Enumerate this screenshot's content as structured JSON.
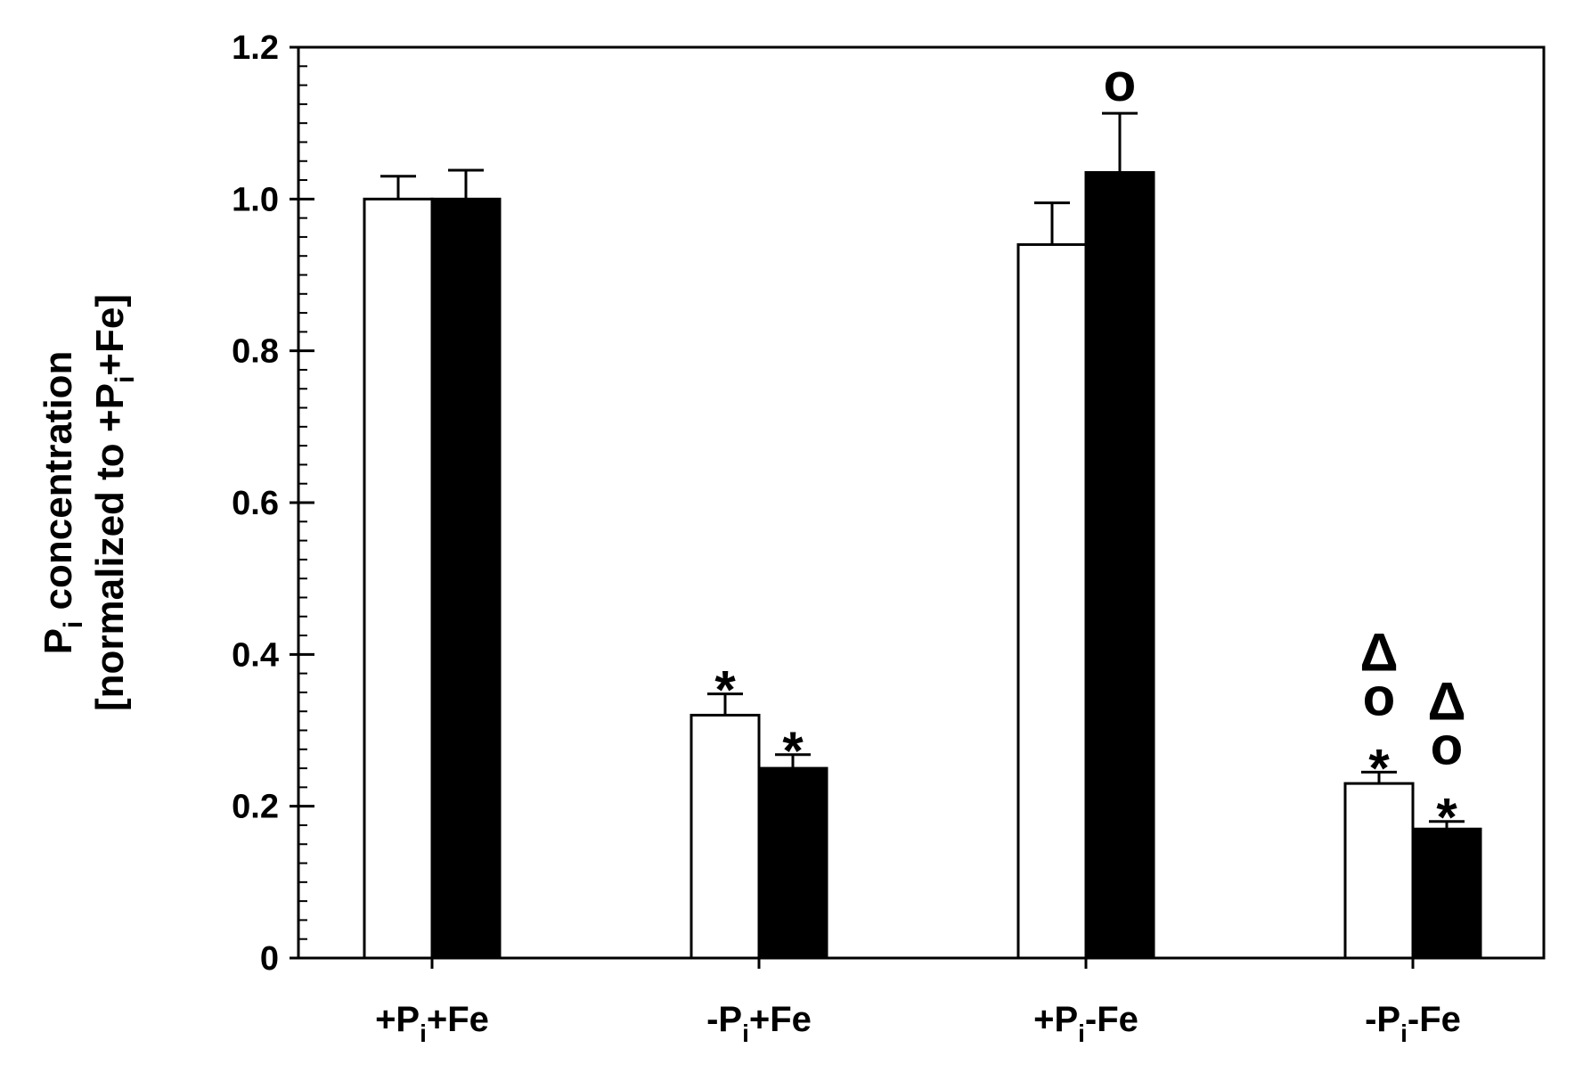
{
  "chart_data": {
    "type": "bar",
    "title": "",
    "xlabel": "",
    "ylabel": {
      "line1": {
        "main": "P",
        "sub": "i",
        "rest": " concentration"
      },
      "line2": {
        "pre": "[normalized to +P",
        "sub": "i",
        "post": "+Fe]"
      }
    },
    "ylim": [
      0,
      1.2
    ],
    "yticks": [
      {
        "value": 0,
        "label": "0"
      },
      {
        "value": 0.2,
        "label": "0.2"
      },
      {
        "value": 0.4,
        "label": "0.4"
      },
      {
        "value": 0.6,
        "label": "0.6"
      },
      {
        "value": 0.8,
        "label": "0.8"
      },
      {
        "value": 1.0,
        "label": "1.0"
      },
      {
        "value": 1.2,
        "label": "1.2"
      }
    ],
    "minor_tick_step": 0.025,
    "grid": false,
    "legend": "none",
    "categories": [
      {
        "pre": "+P",
        "sub": "i",
        "post": "+Fe"
      },
      {
        "pre": "-P",
        "sub": "i",
        "post": "+Fe"
      },
      {
        "pre": "+P",
        "sub": "i",
        "post": "-Fe"
      },
      {
        "pre": "-P",
        "sub": "i",
        "post": "-Fe"
      }
    ],
    "series": [
      {
        "fill": "#ffffff",
        "values": [
          1.0,
          0.32,
          0.94,
          0.23
        ],
        "errors": [
          0.03,
          0.028,
          0.055,
          0.015
        ],
        "annotations": [
          [],
          [
            "*"
          ],
          [],
          [
            "*",
            "o",
            "Δ"
          ]
        ]
      },
      {
        "fill": "#000000",
        "values": [
          1.0,
          0.25,
          1.035,
          0.17
        ],
        "errors": [
          0.038,
          0.018,
          0.078,
          0.01
        ],
        "annotations": [
          [],
          [
            "*"
          ],
          [
            "o"
          ],
          [
            "*",
            "o",
            "Δ"
          ]
        ]
      }
    ]
  }
}
